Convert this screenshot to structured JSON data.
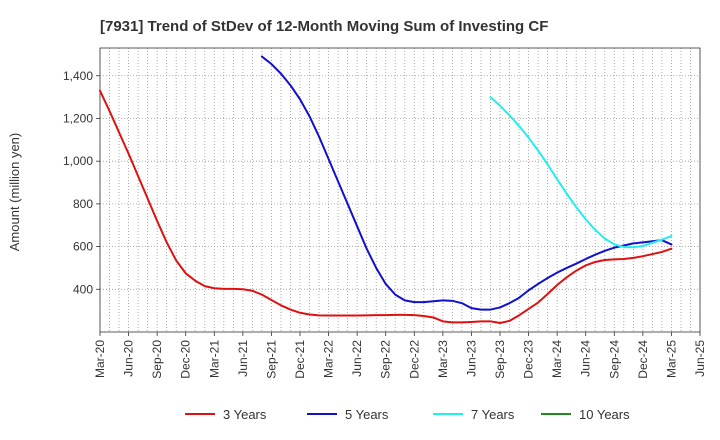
{
  "chart_data": {
    "type": "line",
    "title": "[7931]  Trend of StDev of 12-Month Moving Sum of Investing CF",
    "ylabel": "Amount (million yen)",
    "xlabel": "",
    "x_ticks": [
      "Mar-20",
      "Jun-20",
      "Sep-20",
      "Dec-20",
      "Mar-21",
      "Jun-21",
      "Sep-21",
      "Dec-21",
      "Mar-22",
      "Jun-22",
      "Sep-22",
      "Dec-22",
      "Mar-23",
      "Jun-23",
      "Sep-23",
      "Dec-23",
      "Mar-24",
      "Jun-24",
      "Sep-24",
      "Dec-24",
      "Mar-25",
      "Jun-25"
    ],
    "y_ticks": [
      400,
      600,
      800,
      1000,
      1200,
      1400
    ],
    "y_tick_labels": [
      "400",
      "600",
      "800",
      "1,000",
      "1,200",
      "1,400"
    ],
    "ylim": [
      200,
      1530
    ],
    "grid": true,
    "legend_position": "bottom",
    "series": [
      {
        "name": "3 Years",
        "color": "#dd1111",
        "x": [
          "2020-03",
          "2020-04",
          "2020-05",
          "2020-06",
          "2020-07",
          "2020-08",
          "2020-09",
          "2020-10",
          "2020-11",
          "2020-12",
          "2021-01",
          "2021-02",
          "2021-03",
          "2021-04",
          "2021-05",
          "2021-06",
          "2021-07",
          "2021-08",
          "2021-09",
          "2021-10",
          "2021-11",
          "2021-12",
          "2022-01",
          "2022-02",
          "2022-03",
          "2022-04",
          "2022-05",
          "2022-06",
          "2022-07",
          "2022-08",
          "2022-09",
          "2022-10",
          "2022-11",
          "2022-12",
          "2023-01",
          "2023-02",
          "2023-03",
          "2023-04",
          "2023-05",
          "2023-06",
          "2023-07",
          "2023-08",
          "2023-09",
          "2023-10",
          "2023-11",
          "2023-12",
          "2024-01",
          "2024-02",
          "2024-03",
          "2024-04",
          "2024-05",
          "2024-06",
          "2024-07",
          "2024-08",
          "2024-09",
          "2024-10",
          "2024-11",
          "2024-12",
          "2025-01",
          "2025-02",
          "2025-03"
        ],
        "values": [
          1330,
          1235,
          1135,
          1035,
          930,
          825,
          720,
          620,
          535,
          475,
          440,
          415,
          405,
          402,
          402,
          400,
          393,
          375,
          350,
          325,
          305,
          290,
          282,
          278,
          277,
          277,
          277,
          277,
          278,
          279,
          279,
          280,
          280,
          279,
          275,
          268,
          250,
          245,
          245,
          247,
          250,
          250,
          242,
          252,
          278,
          308,
          338,
          378,
          420,
          456,
          487,
          512,
          528,
          537,
          540,
          542,
          547,
          555,
          565,
          575,
          590
        ]
      },
      {
        "name": "5 Years",
        "color": "#1111cc",
        "x": [
          "2021-08",
          "2021-09",
          "2021-10",
          "2021-11",
          "2021-12",
          "2022-01",
          "2022-02",
          "2022-03",
          "2022-04",
          "2022-05",
          "2022-06",
          "2022-07",
          "2022-08",
          "2022-09",
          "2022-10",
          "2022-11",
          "2022-12",
          "2023-01",
          "2023-02",
          "2023-03",
          "2023-04",
          "2023-05",
          "2023-06",
          "2023-07",
          "2023-08",
          "2023-09",
          "2023-10",
          "2023-11",
          "2023-12",
          "2024-01",
          "2024-02",
          "2024-03",
          "2024-04",
          "2024-05",
          "2024-06",
          "2024-07",
          "2024-08",
          "2024-09",
          "2024-10",
          "2024-11",
          "2024-12",
          "2025-01",
          "2025-02",
          "2025-03"
        ],
        "values": [
          1490,
          1455,
          1410,
          1355,
          1290,
          1210,
          1115,
          1010,
          905,
          800,
          695,
          590,
          500,
          425,
          375,
          348,
          340,
          340,
          344,
          348,
          346,
          335,
          312,
          305,
          305,
          315,
          335,
          360,
          395,
          425,
          453,
          478,
          500,
          520,
          542,
          562,
          580,
          595,
          605,
          615,
          620,
          625,
          630,
          610
        ]
      },
      {
        "name": "7 Years",
        "color": "#22eeee",
        "x": [
          "2023-08",
          "2023-09",
          "2023-10",
          "2023-11",
          "2023-12",
          "2024-01",
          "2024-02",
          "2024-03",
          "2024-04",
          "2024-05",
          "2024-06",
          "2024-07",
          "2024-08",
          "2024-09",
          "2024-10",
          "2024-11",
          "2024-12",
          "2025-01",
          "2025-02",
          "2025-03"
        ],
        "values": [
          1300,
          1260,
          1215,
          1165,
          1110,
          1050,
          985,
          915,
          848,
          785,
          728,
          678,
          638,
          610,
          598,
          597,
          603,
          618,
          632,
          650
        ]
      },
      {
        "name": "10 Years",
        "color": "#228822",
        "x": [],
        "values": []
      }
    ]
  }
}
